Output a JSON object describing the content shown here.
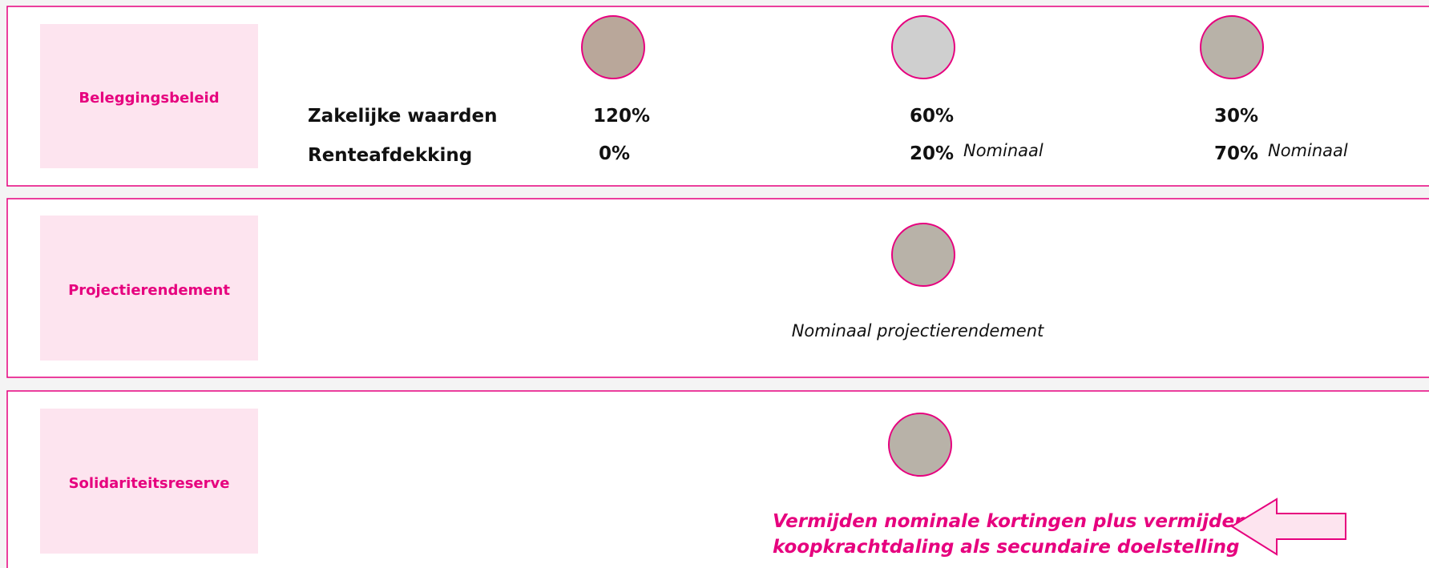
{
  "panels": [
    {
      "label": "Beleggingsbeleid",
      "rows": [
        {
          "label": "Zakelijke waarden",
          "cells": [
            {
              "value": "120%"
            },
            {
              "value": "60%"
            },
            {
              "value": "30%"
            }
          ]
        },
        {
          "label": "Renteafdekking",
          "cells": [
            {
              "value": "0%"
            },
            {
              "value": "20%",
              "note": "Nominaal"
            },
            {
              "value": "70%",
              "note": "Nominaal"
            }
          ]
        }
      ]
    },
    {
      "label": "Projectierendement",
      "text": "Nominaal projectierendement"
    },
    {
      "label": "Solidariteitsreserve",
      "text_lines": [
        "Vermijden nominale kortingen plus vermijden",
        "koopkrachtdaling als secundaire doelstelling"
      ]
    }
  ]
}
